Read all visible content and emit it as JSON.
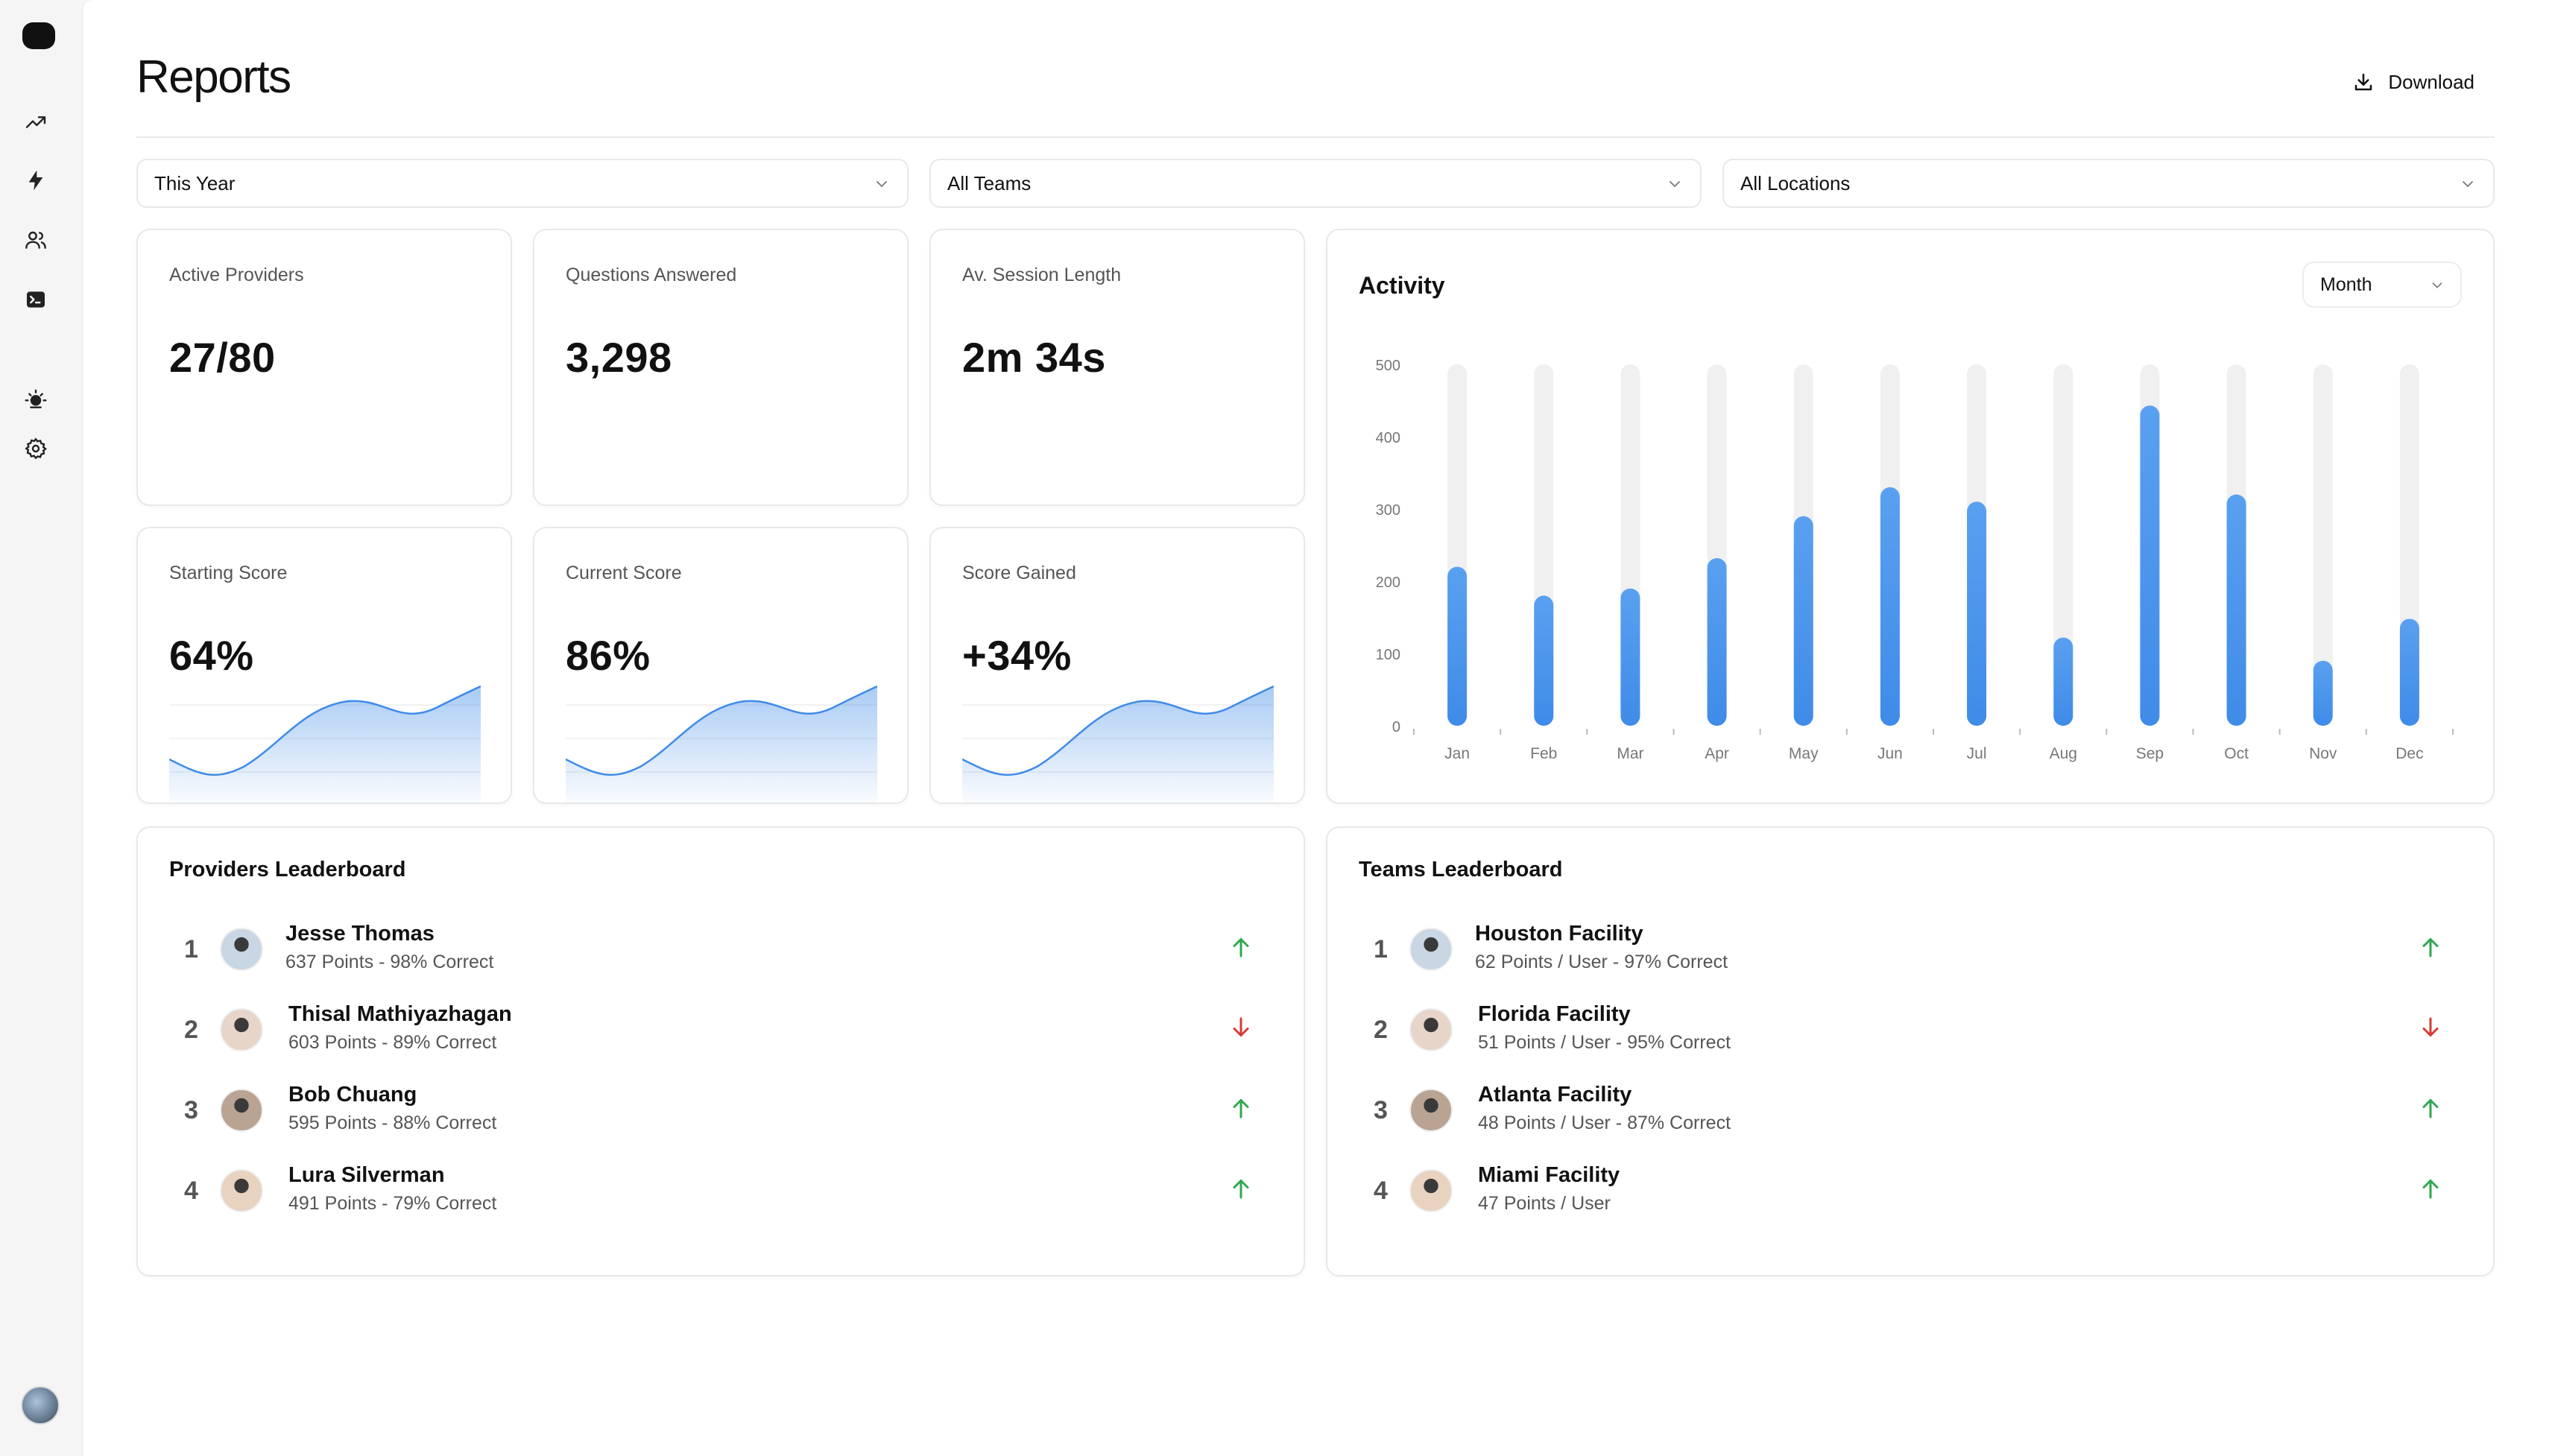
{
  "sidebar": {
    "items": [
      {
        "icon": "trending-up-icon"
      },
      {
        "icon": "lightning-icon"
      },
      {
        "icon": "users-icon"
      },
      {
        "icon": "terminal-icon"
      },
      {
        "icon": "sun-icon"
      },
      {
        "icon": "gear-icon"
      }
    ]
  },
  "header": {
    "title": "Reports",
    "download_label": "Download"
  },
  "filters": {
    "period": "This Year",
    "team": "All Teams",
    "location": "All Locations"
  },
  "stats": {
    "active_providers": {
      "label": "Active Providers",
      "value": "27/80"
    },
    "questions_answered": {
      "label": "Questions Answered",
      "value": "3,298"
    },
    "session_length": {
      "label": "Av. Session Length",
      "value": "2m 34s"
    },
    "starting_score": {
      "label": "Starting Score",
      "value": "64%"
    },
    "current_score": {
      "label": "Current Score",
      "value": "86%"
    },
    "score_gained": {
      "label": "Score Gained",
      "value": "+34%"
    }
  },
  "activity": {
    "title": "Activity",
    "granularity": "Month"
  },
  "chart_data": {
    "type": "bar",
    "categories": [
      "Jan",
      "Feb",
      "Mar",
      "Apr",
      "May",
      "Jun",
      "Jul",
      "Aug",
      "Sep",
      "Oct",
      "Nov",
      "Dec"
    ],
    "values": [
      220,
      180,
      190,
      232,
      290,
      330,
      310,
      122,
      443,
      320,
      90,
      148
    ],
    "ylim": [
      0,
      500
    ],
    "yticks": [
      0,
      100,
      200,
      300,
      400,
      500
    ],
    "grid": false,
    "colors": {
      "bar": "#3f8be8",
      "track": "#f0f0f0"
    }
  },
  "providers_leaderboard": {
    "title": "Providers Leaderboard",
    "rows": [
      {
        "rank": "1",
        "name": "Jesse Thomas",
        "detail": "637 Points - 98% Correct",
        "trend": "up"
      },
      {
        "rank": "2",
        "name": "Thisal Mathiyazhagan",
        "detail": "603 Points - 89% Correct",
        "trend": "down"
      },
      {
        "rank": "3",
        "name": "Bob Chuang",
        "detail": "595 Points - 88% Correct",
        "trend": "up"
      },
      {
        "rank": "4",
        "name": "Lura Silverman",
        "detail": "491 Points - 79% Correct",
        "trend": "up"
      }
    ]
  },
  "teams_leaderboard": {
    "title": "Teams Leaderboard",
    "rows": [
      {
        "rank": "1",
        "name": "Houston Facility",
        "detail": "62 Points / User - 97% Correct",
        "trend": "up"
      },
      {
        "rank": "2",
        "name": "Florida Facility",
        "detail": "51 Points / User - 95% Correct",
        "trend": "down"
      },
      {
        "rank": "3",
        "name": "Atlanta Facility",
        "detail": "48 Points / User - 87% Correct",
        "trend": "up"
      },
      {
        "rank": "4",
        "name": "Miami Facility",
        "detail": "47 Points / User",
        "trend": "up"
      }
    ]
  },
  "colors": {
    "up": "#2fa84f",
    "down": "#d83a34",
    "accent": "#3f8be8"
  }
}
